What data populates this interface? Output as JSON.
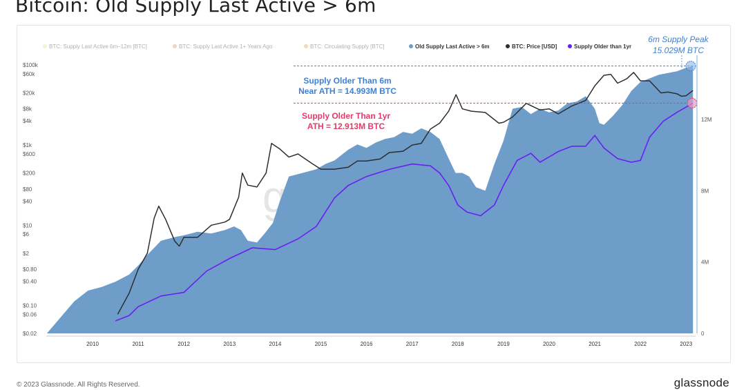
{
  "page": {
    "title": "Bitcoin: Old Supply Last Active > 6m",
    "copyright": "© 2023 Glassnode. All Rights Reserved.",
    "brand": "glassnode"
  },
  "colors": {
    "supply_area": "#6f9dc9",
    "price_line": "#2d2d2d",
    "supply_1yr": "#6a1ff0",
    "annot_6m": "#3d80d6",
    "annot_1yr": "#e23a6a"
  },
  "chart_data": {
    "type": "area",
    "title": "Bitcoin: Old Supply Last Active > 6m",
    "legend": [
      {
        "label": "BTC: Supply Last Active 6m–12m [BTC]",
        "color": "#f2e08a",
        "faded": true
      },
      {
        "label": "BTC: Supply Last Active 1+ Years Ago",
        "color": "#d9a06a",
        "faded": true
      },
      {
        "label": "BTC: Circulating Supply [BTC]",
        "color": "#f5a35c",
        "faded": true
      },
      {
        "label": "Old Supply Last Active > 6m",
        "color": "#6f9dc9",
        "faded": false
      },
      {
        "label": "BTC: Price [USD]",
        "color": "#2d2d2d",
        "faded": false
      },
      {
        "label": "Supply Older than 1yr",
        "color": "#6a1ff0",
        "faded": false
      }
    ],
    "x_ticks": [
      "2010",
      "2011",
      "2012",
      "2013",
      "2014",
      "2015",
      "2016",
      "2017",
      "2018",
      "2019",
      "2020",
      "2021",
      "2022",
      "2023"
    ],
    "left_axis": {
      "scale": "log",
      "labels": [
        "$100k",
        "$60k",
        "$20k",
        "$8k",
        "$4k",
        "$1k",
        "$600",
        "$200",
        "$80",
        "$40",
        "$10",
        "$6",
        "$2",
        "$0.80",
        "$0.40",
        "$0.10",
        "$0.06",
        "$0.02"
      ]
    },
    "right_axis": {
      "labels": [
        "12M",
        "8M",
        "4M",
        "0"
      ],
      "ylim": [
        0,
        15600000
      ]
    },
    "series": [
      {
        "name": "Old Supply Last Active > 6m",
        "x": [
          2009.0,
          2009.4,
          2009.6,
          2009.9,
          2010.2,
          2010.5,
          2010.8,
          2011.0,
          2011.2,
          2011.5,
          2011.8,
          2012.0,
          2012.3,
          2012.6,
          2012.9,
          2013.1,
          2013.25,
          2013.4,
          2013.6,
          2013.8,
          2013.95,
          2014.1,
          2014.3,
          2014.6,
          2014.9,
          2015.1,
          2015.3,
          2015.6,
          2015.8,
          2016.0,
          2016.2,
          2016.4,
          2016.6,
          2016.8,
          2017.0,
          2017.2,
          2017.4,
          2017.6,
          2017.8,
          2017.95,
          2018.1,
          2018.25,
          2018.4,
          2018.6,
          2018.8,
          2019.0,
          2019.2,
          2019.4,
          2019.6,
          2019.8,
          2020.0,
          2020.2,
          2020.4,
          2020.6,
          2020.8,
          2021.0,
          2021.1,
          2021.2,
          2021.4,
          2021.6,
          2021.8,
          2022.0,
          2022.2,
          2022.4,
          2022.6,
          2022.8,
          2023.0,
          2023.15
        ],
        "values": [
          0,
          1200000,
          1800000,
          2400000,
          2600000,
          2900000,
          3300000,
          3800000,
          4400000,
          5200000,
          5400000,
          5500000,
          5700000,
          5600000,
          5800000,
          6000000,
          5800000,
          5200000,
          5100000,
          5700000,
          6200000,
          7400000,
          8800000,
          9000000,
          9200000,
          9500000,
          9700000,
          10300000,
          10600000,
          10400000,
          10700000,
          10900000,
          11000000,
          11300000,
          11200000,
          11500000,
          11300000,
          10900000,
          9800000,
          9000000,
          9000000,
          8800000,
          8200000,
          8000000,
          9500000,
          10800000,
          12600000,
          12700000,
          12300000,
          12600000,
          12400000,
          12500000,
          12900000,
          13000000,
          13300000,
          12600000,
          11800000,
          11700000,
          12200000,
          12800000,
          13600000,
          14100000,
          14300000,
          14500000,
          14600000,
          14700000,
          14900000,
          14993000
        ]
      },
      {
        "name": "Supply Older than 1yr",
        "x": [
          2010.5,
          2010.8,
          2011.0,
          2011.5,
          2012.0,
          2012.5,
          2013.0,
          2013.5,
          2014.0,
          2014.5,
          2014.9,
          2015.3,
          2015.6,
          2016.0,
          2016.5,
          2017.0,
          2017.4,
          2017.6,
          2017.8,
          2018.0,
          2018.2,
          2018.5,
          2018.8,
          2019.0,
          2019.3,
          2019.6,
          2019.8,
          2020.0,
          2020.2,
          2020.5,
          2020.8,
          2021.0,
          2021.2,
          2021.5,
          2021.8,
          2022.0,
          2022.2,
          2022.5,
          2022.8,
          2023.15
        ],
        "values": [
          700000,
          1000000,
          1500000,
          2100000,
          2300000,
          3500000,
          4200000,
          4800000,
          4700000,
          5300000,
          6000000,
          7600000,
          8300000,
          8800000,
          9200000,
          9500000,
          9400000,
          9000000,
          8300000,
          7200000,
          6800000,
          6600000,
          7200000,
          8300000,
          9700000,
          10100000,
          9600000,
          9900000,
          10200000,
          10500000,
          10500000,
          11100000,
          10400000,
          9800000,
          9600000,
          9700000,
          11000000,
          11900000,
          12400000,
          12913000
        ]
      },
      {
        "name": "BTC: Price [USD]",
        "x": [
          2010.55,
          2010.8,
          2011.0,
          2011.2,
          2011.35,
          2011.45,
          2011.6,
          2011.8,
          2011.9,
          2012.0,
          2012.3,
          2012.6,
          2012.9,
          2013.0,
          2013.2,
          2013.28,
          2013.4,
          2013.6,
          2013.8,
          2013.92,
          2014.1,
          2014.3,
          2014.5,
          2014.8,
          2015.0,
          2015.3,
          2015.6,
          2015.8,
          2016.0,
          2016.3,
          2016.5,
          2016.8,
          2017.0,
          2017.2,
          2017.4,
          2017.6,
          2017.8,
          2017.96,
          2018.1,
          2018.3,
          2018.6,
          2018.9,
          2019.0,
          2019.2,
          2019.5,
          2019.8,
          2020.0,
          2020.2,
          2020.5,
          2020.8,
          2021.0,
          2021.2,
          2021.35,
          2021.5,
          2021.7,
          2021.85,
          2022.0,
          2022.2,
          2022.45,
          2022.6,
          2022.8,
          2022.9,
          2023.0,
          2023.15
        ],
        "values": [
          0.06,
          0.2,
          0.8,
          2,
          15,
          30,
          14,
          4,
          3,
          5,
          5,
          10,
          12,
          14,
          50,
          200,
          100,
          90,
          200,
          1100,
          800,
          500,
          600,
          350,
          250,
          250,
          280,
          400,
          400,
          450,
          650,
          700,
          1000,
          1100,
          2500,
          3500,
          7000,
          18000,
          8000,
          7000,
          6500,
          3500,
          3700,
          5000,
          11000,
          7500,
          8000,
          6000,
          9500,
          13000,
          30000,
          55000,
          58000,
          35000,
          45000,
          65000,
          40000,
          40000,
          20000,
          21000,
          19000,
          16500,
          17000,
          23000
        ]
      }
    ],
    "annotations": [
      {
        "line1": "Supply Older Than 6m",
        "line2": "Near ATH = 14.993M BTC"
      },
      {
        "line1": "Supply Older Than 1yr",
        "line2": "ATH = 12.913M BTC"
      },
      {
        "line1": "6m Supply Peak",
        "line2": "15.029M BTC"
      }
    ],
    "watermark": "gl"
  }
}
